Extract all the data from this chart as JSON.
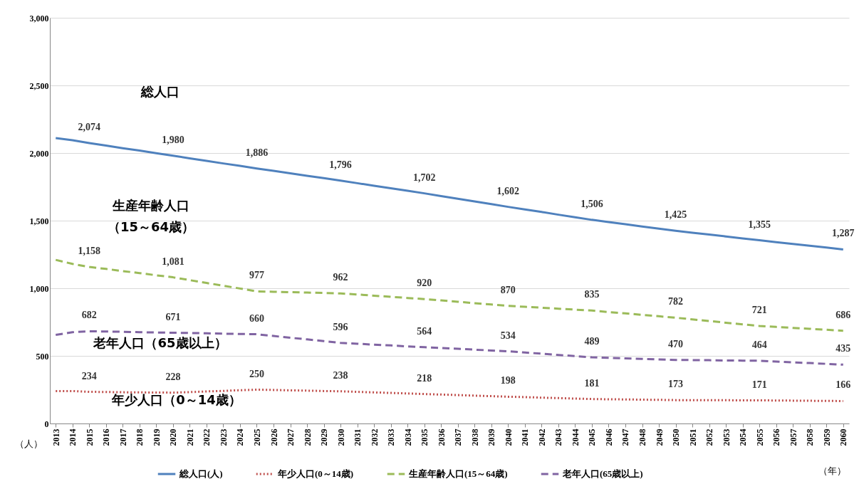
{
  "chart_data": {
    "type": "line",
    "xlabel": "（年）",
    "ylabel": "（人）",
    "categories": [
      "2013",
      "2014",
      "2015",
      "2016",
      "2017",
      "2018",
      "2019",
      "2020",
      "2021",
      "2022",
      "2023",
      "2024",
      "2025",
      "2026",
      "2027",
      "2028",
      "2029",
      "2030",
      "2031",
      "2032",
      "2033",
      "2034",
      "2035",
      "2036",
      "2037",
      "2038",
      "2039",
      "2040",
      "2041",
      "2042",
      "2043",
      "2044",
      "2045",
      "2046",
      "2047",
      "2048",
      "2049",
      "2050",
      "2051",
      "2052",
      "2053",
      "2054",
      "2055",
      "2056",
      "2057",
      "2058",
      "2059",
      "2060"
    ],
    "series": [
      {
        "name": "総人口(人)",
        "color": "#4f81bd",
        "line_style": "solid",
        "values": [
          2110,
          2095,
          2074,
          2055,
          2036,
          2018,
          1999,
          1980,
          1961,
          1942,
          1923,
          1905,
          1886,
          1868,
          1850,
          1832,
          1814,
          1796,
          1777,
          1758,
          1740,
          1721,
          1702,
          1682,
          1662,
          1642,
          1622,
          1602,
          1583,
          1564,
          1544,
          1525,
          1506,
          1490,
          1474,
          1457,
          1441,
          1425,
          1411,
          1397,
          1383,
          1369,
          1355,
          1341,
          1328,
          1314,
          1301,
          1287
        ],
        "value_labels": [
          null,
          null,
          "2,074",
          null,
          null,
          null,
          null,
          "1,980",
          null,
          null,
          null,
          null,
          "1,886",
          null,
          null,
          null,
          null,
          "1,796",
          null,
          null,
          null,
          null,
          "1,702",
          null,
          null,
          null,
          null,
          "1,602",
          null,
          null,
          null,
          null,
          "1,506",
          null,
          null,
          null,
          null,
          "1,425",
          null,
          null,
          null,
          null,
          "1,355",
          null,
          null,
          null,
          null,
          "1,287"
        ]
      },
      {
        "name": "年少人口(0～14歳)",
        "color": "#c0504d",
        "line_style": "dotted",
        "values": [
          240,
          240,
          234,
          233,
          231,
          230,
          229,
          228,
          232,
          237,
          241,
          246,
          250,
          248,
          245,
          243,
          240,
          238,
          234,
          230,
          226,
          222,
          218,
          214,
          210,
          206,
          202,
          198,
          195,
          191,
          188,
          184,
          181,
          179,
          178,
          176,
          175,
          173,
          173,
          172,
          172,
          171,
          171,
          170,
          169,
          168,
          167,
          166
        ],
        "value_labels": [
          null,
          null,
          "234",
          null,
          null,
          null,
          null,
          "228",
          null,
          null,
          null,
          null,
          "250",
          null,
          null,
          null,
          null,
          "238",
          null,
          null,
          null,
          null,
          "218",
          null,
          null,
          null,
          null,
          "198",
          null,
          null,
          null,
          null,
          "181",
          null,
          null,
          null,
          null,
          "173",
          null,
          null,
          null,
          null,
          "171",
          null,
          null,
          null,
          null,
          "166"
        ]
      },
      {
        "name": "生産年齢人口(15～64歳)",
        "color": "#9bbb59",
        "line_style": "dashed",
        "values": [
          1210,
          1180,
          1158,
          1143,
          1127,
          1112,
          1096,
          1081,
          1060,
          1039,
          1019,
          998,
          977,
          974,
          971,
          968,
          965,
          962,
          954,
          945,
          937,
          928,
          920,
          910,
          900,
          890,
          880,
          870,
          863,
          856,
          849,
          842,
          835,
          824,
          814,
          803,
          793,
          782,
          770,
          758,
          745,
          733,
          721,
          714,
          707,
          700,
          693,
          686
        ],
        "value_labels": [
          null,
          null,
          "1,158",
          null,
          null,
          null,
          null,
          "1,081",
          null,
          null,
          null,
          null,
          "977",
          null,
          null,
          null,
          null,
          "962",
          null,
          null,
          null,
          null,
          "920",
          null,
          null,
          null,
          null,
          "870",
          null,
          null,
          null,
          null,
          "835",
          null,
          null,
          null,
          null,
          "782",
          null,
          null,
          null,
          null,
          "721",
          null,
          null,
          null,
          null,
          "686"
        ]
      },
      {
        "name": "老年人口(65歳以上)",
        "color": "#8064a2",
        "line_style": "dashed",
        "values": [
          655,
          675,
          682,
          680,
          678,
          675,
          673,
          671,
          669,
          667,
          664,
          662,
          660,
          647,
          634,
          622,
          609,
          596,
          590,
          583,
          577,
          570,
          564,
          558,
          552,
          546,
          540,
          534,
          525,
          516,
          507,
          498,
          489,
          485,
          481,
          478,
          474,
          470,
          469,
          468,
          466,
          465,
          464,
          458,
          452,
          447,
          441,
          435
        ],
        "value_labels": [
          null,
          null,
          "682",
          null,
          null,
          null,
          null,
          "671",
          null,
          null,
          null,
          null,
          "660",
          null,
          null,
          null,
          null,
          "596",
          null,
          null,
          null,
          null,
          "564",
          null,
          null,
          null,
          null,
          "534",
          null,
          null,
          null,
          null,
          "489",
          null,
          null,
          null,
          null,
          "470",
          null,
          null,
          null,
          null,
          "464",
          null,
          null,
          null,
          null,
          "435"
        ]
      }
    ],
    "ylim": [
      0,
      3000
    ],
    "yticks": [
      0,
      500,
      {
        "value": 1000,
        "label": "1,000"
      },
      {
        "value": 1500,
        "label": "1,500"
      },
      {
        "value": 2000,
        "label": "2,000"
      },
      {
        "value": 2500,
        "label": "2,500"
      },
      {
        "value": 3000,
        "label": "3,000"
      }
    ],
    "grid": "y",
    "legend": "bottom",
    "annotations": [
      "総人口",
      "生産年齢人口",
      "（15～64歳）",
      "老年人口（65歳以上）",
      "年少人口（0～14歳）"
    ]
  }
}
